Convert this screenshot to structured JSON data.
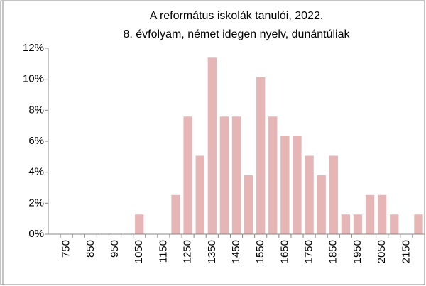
{
  "chart_data": {
    "type": "bar",
    "title": "A református iskolák tanulói, 2022.",
    "subtitle": "8. évfolyam, német idegen nyelv, dunántúliak",
    "categories": [
      null,
      "750",
      null,
      "850",
      null,
      "950",
      null,
      "1050",
      null,
      "1150",
      null,
      "1250",
      null,
      "1350",
      null,
      "1450",
      null,
      "1550",
      null,
      "1650",
      null,
      "1750",
      null,
      "1850",
      null,
      "1950",
      null,
      "2050",
      null,
      "2150",
      null
    ],
    "values": [
      0,
      0,
      0,
      0,
      0,
      0,
      0,
      1.27,
      0,
      0,
      2.53,
      7.59,
      5.06,
      11.39,
      7.59,
      7.59,
      3.8,
      10.13,
      7.59,
      6.33,
      6.33,
      5.06,
      3.8,
      5.06,
      1.27,
      1.27,
      2.53,
      2.53,
      1.27,
      0,
      1.27
    ],
    "color": "#e6b5b5",
    "ylim": [
      0,
      12
    ],
    "yticks": [
      {
        "value": 0,
        "label": "0%"
      },
      {
        "value": 2,
        "label": "2%"
      },
      {
        "value": 4,
        "label": "4%"
      },
      {
        "value": 6,
        "label": "6%"
      },
      {
        "value": 8,
        "label": "8%"
      },
      {
        "value": 10,
        "label": "10%"
      },
      {
        "value": 12,
        "label": "12%"
      }
    ],
    "grid": false
  }
}
